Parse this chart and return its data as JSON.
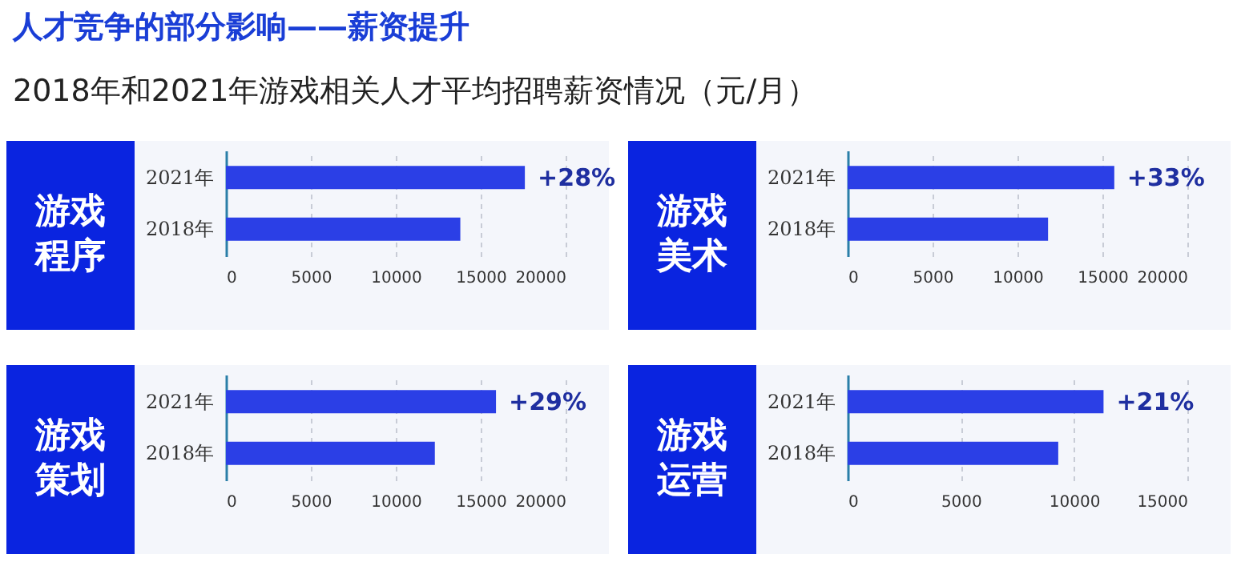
{
  "chart_data": [
    {
      "type": "other",
      "title": "人才竞争的部分影响——薪资提升",
      "subtitle": "2018年和2021年游戏相关人才平均招聘薪资情况（元/月）"
    },
    {
      "type": "bar",
      "orientation": "horizontal",
      "title": "游戏程序",
      "categories": [
        "2021年",
        "2018年"
      ],
      "values": [
        17600,
        13800
      ],
      "color": "#2b3fe6",
      "xlim": [
        0,
        20000
      ],
      "xticks": [
        0,
        5000,
        10000,
        15000,
        20000
      ],
      "grid": "x",
      "annotations": [
        {
          "text": "+28%",
          "x": 17600,
          "y": "2021年"
        }
      ]
    },
    {
      "type": "bar",
      "orientation": "horizontal",
      "title": "游戏美术",
      "categories": [
        "2021年",
        "2018年"
      ],
      "values": [
        15700,
        11800
      ],
      "color": "#2b3fe6",
      "xlim": [
        0,
        20000
      ],
      "xticks": [
        0,
        5000,
        10000,
        15000,
        20000
      ],
      "grid": "x",
      "annotations": [
        {
          "text": "+33%",
          "x": 15700,
          "y": "2021年"
        }
      ]
    },
    {
      "type": "bar",
      "orientation": "horizontal",
      "title": "游戏策划",
      "categories": [
        "2021年",
        "2018年"
      ],
      "values": [
        15900,
        12300
      ],
      "color": "#2b3fe6",
      "xlim": [
        0,
        20000
      ],
      "xticks": [
        0,
        5000,
        10000,
        15000,
        20000
      ],
      "grid": "x",
      "annotations": [
        {
          "text": "+29%",
          "x": 15900,
          "y": "2021年"
        }
      ]
    },
    {
      "type": "bar",
      "orientation": "horizontal",
      "title": "游戏运营",
      "categories": [
        "2021年",
        "2018年"
      ],
      "values": [
        11300,
        9300
      ],
      "color": "#2b3fe6",
      "xlim": [
        0,
        15000
      ],
      "xticks": [
        0,
        5000,
        10000,
        15000
      ],
      "grid": "x",
      "annotations": [
        {
          "text": "+21%",
          "x": 11300,
          "y": "2021年"
        }
      ]
    }
  ]
}
